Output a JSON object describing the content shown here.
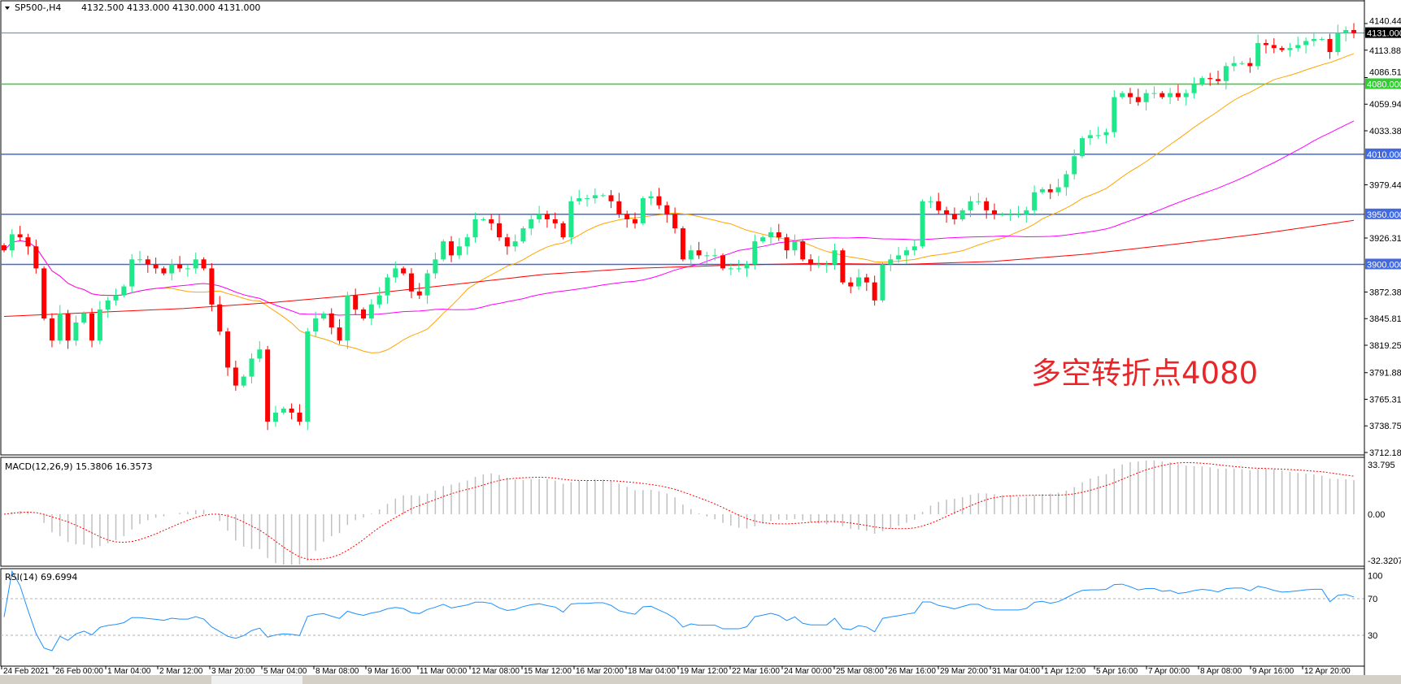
{
  "header": {
    "symbol": "SP500-,H4",
    "ohlc": "4132.500 4133.000 4130.000 4131.000"
  },
  "annotation": "多空转折点4080",
  "colors": {
    "bull": "#1ee88a",
    "bear": "#ff0000",
    "ma_fast": "#ffa500",
    "ma_mid": "#ff00ff",
    "ma_slow": "#ff0000",
    "level_blue": "#4169e1",
    "level_green": "#32cd32",
    "current_price": "#708090",
    "rsi": "#1e90ff",
    "macd_hist": "#c0c0c0",
    "macd_signal": "#ff0000"
  },
  "chart_data": [
    {
      "type": "candlestick",
      "title": "SP500-,H4",
      "ylim": [
        3712.185,
        4140.445
      ],
      "y_ticks": [
        "4140.445",
        "4113.880",
        "4086.510",
        "4059.945",
        "4033.380",
        "3979.445",
        "3926.315",
        "3872.380",
        "3845.815",
        "3819.250",
        "3791.880",
        "3765.315",
        "3738.750",
        "3712.185"
      ],
      "x_ticks": [
        "24 Feb 2021",
        "26 Feb 00:00",
        "1 Mar 04:00",
        "2 Mar 12:00",
        "3 Mar 20:00",
        "5 Mar 04:00",
        "8 Mar 08:00",
        "9 Mar 16:00",
        "11 Mar 00:00",
        "12 Mar 08:00",
        "15 Mar 12:00",
        "16 Mar 20:00",
        "18 Mar 04:00",
        "19 Mar 12:00",
        "22 Mar 16:00",
        "24 Mar 00:00",
        "25 Mar 08:00",
        "26 Mar 16:00",
        "29 Mar 20:00",
        "31 Mar 04:00",
        "1 Apr 12:00",
        "5 Apr 16:00",
        "7 Apr 00:00",
        "8 Apr 08:00",
        "9 Apr 16:00",
        "12 Apr 20:00"
      ],
      "closes": [
        3914,
        3930,
        3927,
        3918,
        3896,
        3846,
        3824,
        3851,
        3824,
        3842,
        3851,
        3824,
        3855,
        3864,
        3869,
        3878,
        3905,
        3905,
        3900,
        3896,
        3891,
        3900,
        3896,
        3896,
        3905,
        3896,
        3860,
        3833,
        3797,
        3779,
        3788,
        3806,
        3815,
        3743,
        3752,
        3756,
        3752,
        3743,
        3833,
        3846,
        3851,
        3837,
        3824,
        3869,
        3855,
        3846,
        3860,
        3869,
        3887,
        3896,
        3891,
        3873,
        3869,
        3891,
        3905,
        3923,
        3909,
        3918,
        3927,
        3945,
        3945,
        3941,
        3927,
        3918,
        3923,
        3936,
        3945,
        3950,
        3945,
        3941,
        3927,
        3963,
        3966,
        3966,
        3969,
        3969,
        3963,
        3950,
        3945,
        3941,
        3966,
        3968,
        3959,
        3950,
        3936,
        3905,
        3914,
        3909,
        3909,
        3909,
        3896,
        3896,
        3896,
        3900,
        3923,
        3927,
        3932,
        3927,
        3914,
        3923,
        3905,
        3900,
        3900,
        3900,
        3914,
        3882,
        3878,
        3887,
        3882,
        3864,
        3900,
        3905,
        3909,
        3914,
        3918,
        3963,
        3963,
        3954,
        3950,
        3945,
        3954,
        3963,
        3963,
        3954,
        3950,
        3950,
        3950,
        3950,
        3954,
        3972,
        3975,
        3972,
        3977,
        3990,
        4008,
        4026,
        4029,
        4029,
        4032,
        4067,
        4071,
        4067,
        4062,
        4071,
        4071,
        4067,
        4071,
        4067,
        4071,
        4080,
        4086,
        4085,
        4083,
        4098,
        4101,
        4101,
        4098,
        4121,
        4119,
        4116,
        4114,
        4116,
        4119,
        4123,
        4125,
        4125,
        4112,
        4131,
        4134,
        4131
      ],
      "moving_averages": [
        {
          "color_key": "ma_fast",
          "period": 21
        },
        {
          "color_key": "ma_mid",
          "period": 55
        },
        {
          "color_key": "ma_slow",
          "values": [
            3848,
            3852,
            3856,
            3862,
            3870,
            3880,
            3890,
            3896,
            3899,
            3901,
            3900,
            3903,
            3910,
            3920,
            3931,
            3944
          ]
        }
      ],
      "levels": [
        {
          "value": 4131.0,
          "label": "4131.000",
          "color_key": "current_price",
          "label_bg": "#000000"
        },
        {
          "value": 4080.0,
          "label": "4080.000",
          "color_key": "level_green",
          "label_bg": "#32cd32"
        },
        {
          "value": 4010.0,
          "label": "4010.000",
          "color_key": "level_blue",
          "label_bg": "#4169e1"
        },
        {
          "value": 3950.0,
          "label": "3950.000",
          "color_key": "level_blue",
          "label_bg": "#4169e1"
        },
        {
          "value": 3900.0,
          "label": "3900.000",
          "color_key": "level_blue",
          "label_bg": "#4169e1"
        }
      ]
    },
    {
      "type": "bar",
      "title": "MACD(12,26,9) 15.3806 16.3573",
      "params": {
        "fast": 12,
        "slow": 26,
        "signal": 9
      },
      "ylim": [
        -32.3207,
        33.795
      ],
      "y_ticks": [
        "33.795",
        "0.00",
        "-32.3207"
      ]
    },
    {
      "type": "line",
      "title": "RSI(14) 69.6994",
      "params": {
        "period": 14
      },
      "ylim": [
        0,
        100
      ],
      "levels": [
        70,
        30
      ],
      "y_ticks": [
        "100",
        "70",
        "30"
      ]
    }
  ]
}
